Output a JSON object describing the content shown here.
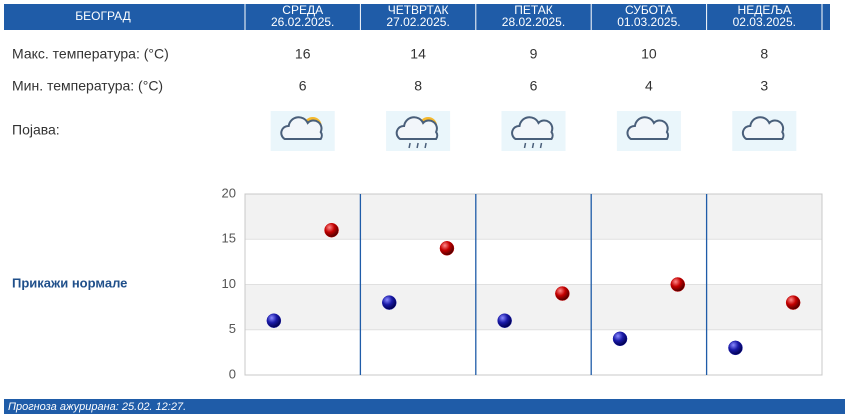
{
  "header": {
    "city": "БЕОГРАД",
    "days": [
      {
        "name": "СРЕДА",
        "date": "26.02.2025."
      },
      {
        "name": "ЧЕТВРТАК",
        "date": "27.02.2025."
      },
      {
        "name": "ПЕТАК",
        "date": "28.02.2025."
      },
      {
        "name": "СУБОТА",
        "date": "01.03.2025."
      },
      {
        "name": "НЕДЕЉА",
        "date": "02.03.2025."
      }
    ]
  },
  "table": {
    "rows": [
      {
        "label": "Макс. температура: (°C)",
        "values": [
          16,
          14,
          9,
          10,
          8
        ]
      },
      {
        "label": "Мин. температура: (°C)",
        "values": [
          6,
          8,
          6,
          4,
          3
        ]
      },
      {
        "label": "Појава:"
      }
    ]
  },
  "link": "Прикажи нормале",
  "chart_data": {
    "type": "scatter",
    "ylim": [
      0,
      20
    ],
    "yticks": [
      0,
      5,
      10,
      15,
      20
    ],
    "grid": true,
    "series": [
      {
        "color": "#1a1aa8",
        "values": [
          6,
          8,
          6,
          4,
          3
        ]
      },
      {
        "color": "#c40000",
        "values": [
          16,
          14,
          9,
          10,
          8
        ]
      }
    ]
  },
  "footer": "Прогноза ажурирана:  25.02. 12:27."
}
